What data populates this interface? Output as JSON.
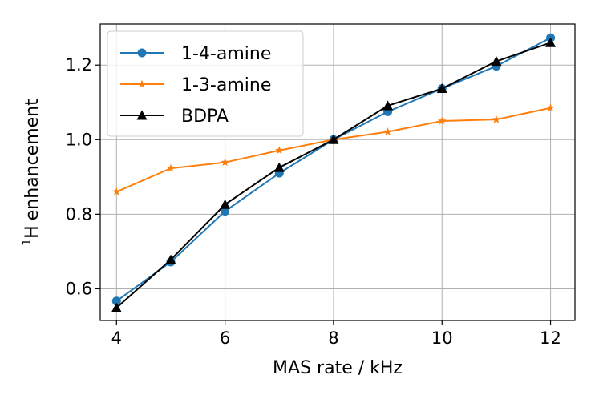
{
  "chart_data": {
    "type": "line",
    "title": "",
    "xlabel": "MAS rate / kHz",
    "ylabel": "enhancement",
    "ylabel_nucleus": "H",
    "ylabel_superscript": "1",
    "xlim": [
      3.7,
      12.45
    ],
    "ylim": [
      0.515,
      1.31
    ],
    "xticks": [
      4,
      6,
      8,
      10,
      12
    ],
    "yticks": [
      0.6,
      0.8,
      1.0,
      1.2
    ],
    "xtick_labels": [
      "4",
      "6",
      "8",
      "10",
      "12"
    ],
    "ytick_labels": [
      "0.6",
      "0.8",
      "1.0",
      "1.2"
    ],
    "grid": true,
    "legend_position": "top-left",
    "x": [
      4,
      5,
      6,
      7,
      8,
      9,
      10,
      11,
      12
    ],
    "series": [
      {
        "name": "1-4-amine",
        "color": "#1f77b4",
        "marker": "circle",
        "values": [
          0.567,
          0.672,
          0.808,
          0.91,
          1.0,
          1.075,
          1.137,
          1.197,
          1.273
        ]
      },
      {
        "name": "1-3-amine",
        "color": "#ff7f0e",
        "marker": "star",
        "values": [
          0.86,
          0.923,
          0.939,
          0.971,
          1.0,
          1.021,
          1.05,
          1.054,
          1.085
        ]
      },
      {
        "name": "BDPA",
        "color": "#000000",
        "marker": "triangle",
        "values": [
          0.549,
          0.678,
          0.826,
          0.925,
          1.0,
          1.091,
          1.137,
          1.21,
          1.26
        ]
      }
    ]
  }
}
